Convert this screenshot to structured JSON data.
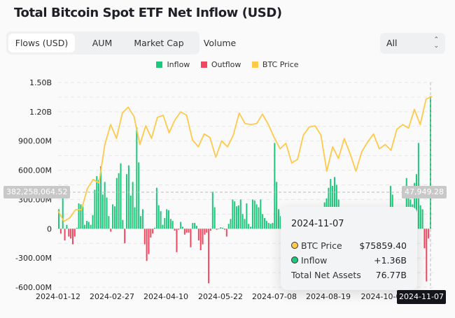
{
  "title": "Total Bitcoin Spot ETF Net Inflow (USD)",
  "tabs": [
    {
      "label": "Flows (USD)",
      "active": true
    },
    {
      "label": "AUM",
      "active": false
    },
    {
      "label": "Market Cap",
      "active": false
    },
    {
      "label": "Volume",
      "active": false
    }
  ],
  "range_select": {
    "value": "All",
    "icon": "chevron-up-down-icon"
  },
  "legend": [
    {
      "label": "Inflow",
      "color": "#1dc77b"
    },
    {
      "label": "Outflow",
      "color": "#f1485f"
    },
    {
      "label": "BTC Price",
      "color": "#ffc94a"
    }
  ],
  "crosshair": {
    "left_value": "382,258,064.52",
    "right_value": "47,949.28",
    "date": "2024-11-07"
  },
  "tooltip": {
    "date": "2024-11-07",
    "rows": [
      {
        "label": "BTC Price",
        "value": "$75859.40",
        "dot_color": "#ffc94a"
      },
      {
        "label": "Inflow",
        "value": "+1.36B",
        "dot_color": "#1dc77b"
      },
      {
        "label": "Total Net Assets",
        "value": "76.77B"
      }
    ]
  },
  "chart_data": {
    "type": "bar+line",
    "title": "Total Bitcoin Spot ETF Net Inflow (USD)",
    "x_range": [
      "2024-01-11",
      "2024-11-07"
    ],
    "x_tick_labels": [
      "2024-01-12",
      "2024-02-27",
      "2024-04-10",
      "2024-05-22",
      "2024-07-08",
      "2024-08-19",
      "2024-10-0"
    ],
    "y_tick_labels": [
      "1.50B",
      "1.20B",
      "900.00M",
      "600.00M",
      "300.00M",
      "0",
      "-300.00M",
      "-600.00M"
    ],
    "ylim_usd_millions": [
      -600,
      1500
    ],
    "grid": true,
    "flows_usd_millions": [
      200,
      -50,
      350,
      -120,
      40,
      -80,
      -100,
      -160,
      -80,
      10,
      260,
      250,
      230,
      40,
      80,
      70,
      40,
      140,
      400,
      540,
      500,
      640,
      350,
      480,
      320,
      130,
      -30,
      250,
      230,
      520,
      570,
      670,
      90,
      -150,
      560,
      650,
      340,
      480,
      220,
      1040,
      680,
      130,
      200,
      -160,
      -330,
      -260,
      -90,
      -50,
      10,
      420,
      240,
      180,
      40,
      110,
      200,
      190,
      100,
      80,
      -20,
      -240,
      -10,
      70,
      20,
      -60,
      -40,
      -40,
      -190,
      60,
      60,
      30,
      -120,
      -220,
      -160,
      -60,
      -40,
      -560,
      -20,
      380,
      220,
      -10,
      -5,
      15,
      10,
      -10,
      -80,
      50,
      100,
      300,
      280,
      230,
      240,
      300,
      150,
      100,
      260,
      50,
      20,
      300,
      290,
      250,
      220,
      300,
      150,
      110,
      80,
      60,
      50,
      60,
      880,
      480,
      200,
      130,
      60,
      0,
      140,
      -100,
      -150,
      -200,
      -170,
      -120,
      -160,
      -120,
      -140,
      -100,
      -80,
      30,
      20,
      40,
      120,
      -10,
      -10,
      120,
      200,
      270,
      310,
      420,
      510,
      440,
      530,
      450,
      300,
      -30,
      80,
      -50,
      30,
      40,
      20,
      -40,
      60,
      30,
      -80,
      -100,
      100,
      60,
      20,
      50,
      40,
      30,
      120,
      30,
      80,
      20,
      80,
      100,
      150,
      80,
      440,
      350,
      100,
      80,
      150,
      50,
      60,
      200,
      520,
      380,
      300,
      250,
      470,
      560,
      880,
      240,
      200,
      -200,
      -540,
      -100,
      1360
    ],
    "btc_price_usd": [
      42510,
      39460,
      40470,
      42860,
      42860,
      48970,
      51680,
      50660,
      61860,
      67650,
      63630,
      71030,
      72740,
      70010,
      61860,
      67300,
      63630,
      69740,
      70360,
      65260,
      69030,
      71370,
      70360,
      63230,
      61190,
      64920,
      63900,
      58130,
      62880,
      61190,
      64590,
      71030,
      67970,
      67650,
      67970,
      70700,
      67650,
      63900,
      60580,
      62210,
      56440,
      57520,
      64590,
      66950,
      67300,
      64590,
      54060,
      61190,
      57790,
      63570,
      59150,
      54060,
      59830,
      62550,
      64920,
      60580,
      61860,
      60170,
      66280,
      67650,
      66630,
      72060,
      67650,
      75100,
      75859.4
    ]
  }
}
